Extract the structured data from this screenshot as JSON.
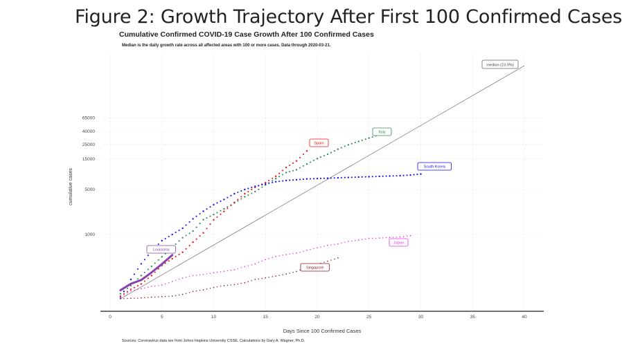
{
  "slide": {
    "title": "Figure 2: Growth Trajectory After First 100 Confirmed Cases",
    "source_note": "Sources: Coronavirus data are from Johns Hopkins University CSSE. Calculations by Gary A. Wagner, Ph.D."
  },
  "chart_data": {
    "type": "scatter",
    "title": "Cumulative Confirmed COVID-19 Case Growth After 100 Confirmed Cases",
    "subtitle": "Median is the daily growth rate across all affected areas with 100 or more cases. Data through 2020-03-21.",
    "xlabel": "Days Since 100 Confirmed Cases",
    "ylabel": "cumulative cases",
    "y_scale": "log",
    "xlim": [
      -1,
      42
    ],
    "x_ticks": [
      0,
      5,
      10,
      15,
      20,
      25,
      30,
      35,
      40
    ],
    "y_ticks": [
      1000,
      5000,
      15000,
      25000,
      40000,
      65000
    ],
    "grid": true,
    "legend": "none (labels placed beside each series)",
    "median": {
      "label": "median (23.9%)",
      "growth_rate": 0.239,
      "color": "#555555",
      "x": [
        1,
        40
      ],
      "y": [
        100,
        420000
      ]
    },
    "series": [
      {
        "name": "Italy",
        "color": "#2e8b57",
        "x": [
          1,
          2,
          3,
          4,
          5,
          6,
          7,
          8,
          9,
          10,
          11,
          12,
          13,
          14,
          15,
          16,
          17,
          18,
          19,
          20,
          21,
          22,
          23,
          24,
          25,
          26
        ],
        "y": [
          120,
          160,
          230,
          320,
          450,
          630,
          890,
          1130,
          1700,
          2040,
          2500,
          3090,
          3860,
          4640,
          5880,
          7380,
          9170,
          10150,
          12460,
          15110,
          17660,
          21160,
          24750,
          27980,
          31510,
          35710
        ]
      },
      {
        "name": "Spain",
        "color": "#ee1111",
        "x": [
          1,
          2,
          3,
          4,
          5,
          6,
          7,
          8,
          9,
          10,
          11,
          12,
          13,
          14,
          15,
          16,
          17,
          18,
          19
        ],
        "y": [
          110,
          140,
          170,
          230,
          330,
          420,
          530,
          760,
          1060,
          1690,
          2280,
          3150,
          4300,
          5400,
          6400,
          8000,
          11000,
          13900,
          19900
        ]
      },
      {
        "name": "South Korea",
        "color": "#1111ee",
        "x": [
          1,
          2,
          3,
          4,
          5,
          6,
          7,
          8,
          9,
          10,
          11,
          12,
          13,
          14,
          15,
          16,
          17,
          18,
          19,
          20,
          21,
          22,
          23,
          24,
          25,
          26,
          27,
          28,
          29,
          30
        ],
        "y": [
          104,
          200,
          350,
          550,
          800,
          1000,
          1250,
          1750,
          2300,
          2900,
          3500,
          4300,
          5000,
          5600,
          6100,
          6600,
          6900,
          7100,
          7300,
          7400,
          7500,
          7600,
          7700,
          7800,
          7900,
          8000,
          8100,
          8200,
          8400,
          8700
        ]
      },
      {
        "name": "Japan",
        "color": "#ee33ee",
        "x": [
          1,
          2,
          3,
          4,
          5,
          6,
          7,
          8,
          9,
          10,
          11,
          12,
          13,
          14,
          15,
          16,
          17,
          18,
          19,
          20,
          21,
          22,
          23,
          24,
          25,
          26,
          27,
          28,
          29
        ],
        "y": [
          105,
          132,
          144,
          156,
          164,
          186,
          210,
          230,
          239,
          254,
          268,
          284,
          317,
          349,
          408,
          455,
          488,
          514,
          568,
          620,
          675,
          714,
          780,
          817,
          869,
          880,
          900,
          914,
          960
        ]
      },
      {
        "name": "Singapore",
        "color": "#8b1a2a",
        "x": [
          1,
          2,
          3,
          4,
          5,
          6,
          7,
          8,
          9,
          10,
          11,
          12,
          13,
          14,
          15,
          16,
          17,
          18,
          19,
          20,
          21,
          22
        ],
        "y": [
          100,
          102,
          103,
          106,
          108,
          110,
          117,
          130,
          138,
          150,
          160,
          166,
          178,
          200,
          212,
          226,
          243,
          266,
          313,
          345,
          385,
          432
        ]
      },
      {
        "name": "Louisiana",
        "color": "#8844aa",
        "x": [
          1,
          2,
          3,
          4,
          5,
          6
        ],
        "y": [
          136,
          171,
          196,
          257,
          347,
          479
        ]
      }
    ]
  }
}
